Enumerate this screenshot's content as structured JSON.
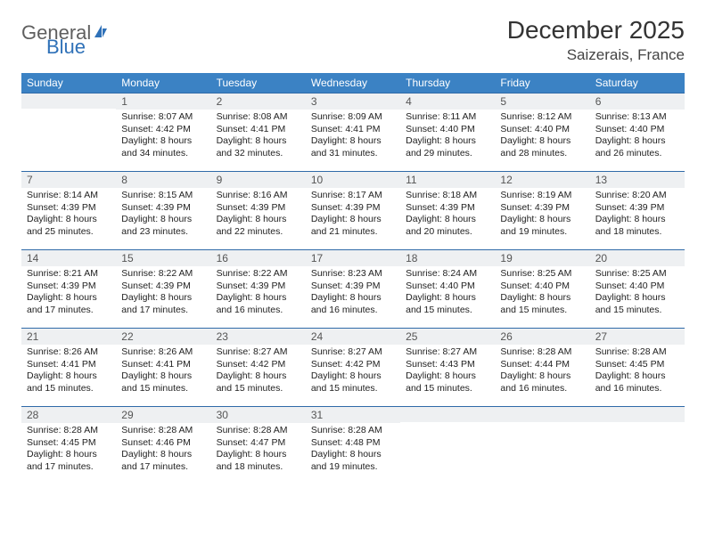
{
  "logo": {
    "part1": "General",
    "part2": "Blue"
  },
  "title": "December 2025",
  "location": "Saizerais, France",
  "colors": {
    "header_bg": "#3b82c4",
    "header_text": "#ffffff",
    "daynum_bg": "#eef0f2",
    "daynum_border": "#2f6aa8",
    "body_text": "#222222",
    "logo_gray": "#5f5f5f",
    "logo_blue": "#2f71b8"
  },
  "weekdays": [
    "Sunday",
    "Monday",
    "Tuesday",
    "Wednesday",
    "Thursday",
    "Friday",
    "Saturday"
  ],
  "weeks": [
    [
      null,
      {
        "n": "1",
        "sr": "Sunrise: 8:07 AM",
        "ss": "Sunset: 4:42 PM",
        "d1": "Daylight: 8 hours",
        "d2": "and 34 minutes."
      },
      {
        "n": "2",
        "sr": "Sunrise: 8:08 AM",
        "ss": "Sunset: 4:41 PM",
        "d1": "Daylight: 8 hours",
        "d2": "and 32 minutes."
      },
      {
        "n": "3",
        "sr": "Sunrise: 8:09 AM",
        "ss": "Sunset: 4:41 PM",
        "d1": "Daylight: 8 hours",
        "d2": "and 31 minutes."
      },
      {
        "n": "4",
        "sr": "Sunrise: 8:11 AM",
        "ss": "Sunset: 4:40 PM",
        "d1": "Daylight: 8 hours",
        "d2": "and 29 minutes."
      },
      {
        "n": "5",
        "sr": "Sunrise: 8:12 AM",
        "ss": "Sunset: 4:40 PM",
        "d1": "Daylight: 8 hours",
        "d2": "and 28 minutes."
      },
      {
        "n": "6",
        "sr": "Sunrise: 8:13 AM",
        "ss": "Sunset: 4:40 PM",
        "d1": "Daylight: 8 hours",
        "d2": "and 26 minutes."
      }
    ],
    [
      {
        "n": "7",
        "sr": "Sunrise: 8:14 AM",
        "ss": "Sunset: 4:39 PM",
        "d1": "Daylight: 8 hours",
        "d2": "and 25 minutes."
      },
      {
        "n": "8",
        "sr": "Sunrise: 8:15 AM",
        "ss": "Sunset: 4:39 PM",
        "d1": "Daylight: 8 hours",
        "d2": "and 23 minutes."
      },
      {
        "n": "9",
        "sr": "Sunrise: 8:16 AM",
        "ss": "Sunset: 4:39 PM",
        "d1": "Daylight: 8 hours",
        "d2": "and 22 minutes."
      },
      {
        "n": "10",
        "sr": "Sunrise: 8:17 AM",
        "ss": "Sunset: 4:39 PM",
        "d1": "Daylight: 8 hours",
        "d2": "and 21 minutes."
      },
      {
        "n": "11",
        "sr": "Sunrise: 8:18 AM",
        "ss": "Sunset: 4:39 PM",
        "d1": "Daylight: 8 hours",
        "d2": "and 20 minutes."
      },
      {
        "n": "12",
        "sr": "Sunrise: 8:19 AM",
        "ss": "Sunset: 4:39 PM",
        "d1": "Daylight: 8 hours",
        "d2": "and 19 minutes."
      },
      {
        "n": "13",
        "sr": "Sunrise: 8:20 AM",
        "ss": "Sunset: 4:39 PM",
        "d1": "Daylight: 8 hours",
        "d2": "and 18 minutes."
      }
    ],
    [
      {
        "n": "14",
        "sr": "Sunrise: 8:21 AM",
        "ss": "Sunset: 4:39 PM",
        "d1": "Daylight: 8 hours",
        "d2": "and 17 minutes."
      },
      {
        "n": "15",
        "sr": "Sunrise: 8:22 AM",
        "ss": "Sunset: 4:39 PM",
        "d1": "Daylight: 8 hours",
        "d2": "and 17 minutes."
      },
      {
        "n": "16",
        "sr": "Sunrise: 8:22 AM",
        "ss": "Sunset: 4:39 PM",
        "d1": "Daylight: 8 hours",
        "d2": "and 16 minutes."
      },
      {
        "n": "17",
        "sr": "Sunrise: 8:23 AM",
        "ss": "Sunset: 4:39 PM",
        "d1": "Daylight: 8 hours",
        "d2": "and 16 minutes."
      },
      {
        "n": "18",
        "sr": "Sunrise: 8:24 AM",
        "ss": "Sunset: 4:40 PM",
        "d1": "Daylight: 8 hours",
        "d2": "and 15 minutes."
      },
      {
        "n": "19",
        "sr": "Sunrise: 8:25 AM",
        "ss": "Sunset: 4:40 PM",
        "d1": "Daylight: 8 hours",
        "d2": "and 15 minutes."
      },
      {
        "n": "20",
        "sr": "Sunrise: 8:25 AM",
        "ss": "Sunset: 4:40 PM",
        "d1": "Daylight: 8 hours",
        "d2": "and 15 minutes."
      }
    ],
    [
      {
        "n": "21",
        "sr": "Sunrise: 8:26 AM",
        "ss": "Sunset: 4:41 PM",
        "d1": "Daylight: 8 hours",
        "d2": "and 15 minutes."
      },
      {
        "n": "22",
        "sr": "Sunrise: 8:26 AM",
        "ss": "Sunset: 4:41 PM",
        "d1": "Daylight: 8 hours",
        "d2": "and 15 minutes."
      },
      {
        "n": "23",
        "sr": "Sunrise: 8:27 AM",
        "ss": "Sunset: 4:42 PM",
        "d1": "Daylight: 8 hours",
        "d2": "and 15 minutes."
      },
      {
        "n": "24",
        "sr": "Sunrise: 8:27 AM",
        "ss": "Sunset: 4:42 PM",
        "d1": "Daylight: 8 hours",
        "d2": "and 15 minutes."
      },
      {
        "n": "25",
        "sr": "Sunrise: 8:27 AM",
        "ss": "Sunset: 4:43 PM",
        "d1": "Daylight: 8 hours",
        "d2": "and 15 minutes."
      },
      {
        "n": "26",
        "sr": "Sunrise: 8:28 AM",
        "ss": "Sunset: 4:44 PM",
        "d1": "Daylight: 8 hours",
        "d2": "and 16 minutes."
      },
      {
        "n": "27",
        "sr": "Sunrise: 8:28 AM",
        "ss": "Sunset: 4:45 PM",
        "d1": "Daylight: 8 hours",
        "d2": "and 16 minutes."
      }
    ],
    [
      {
        "n": "28",
        "sr": "Sunrise: 8:28 AM",
        "ss": "Sunset: 4:45 PM",
        "d1": "Daylight: 8 hours",
        "d2": "and 17 minutes."
      },
      {
        "n": "29",
        "sr": "Sunrise: 8:28 AM",
        "ss": "Sunset: 4:46 PM",
        "d1": "Daylight: 8 hours",
        "d2": "and 17 minutes."
      },
      {
        "n": "30",
        "sr": "Sunrise: 8:28 AM",
        "ss": "Sunset: 4:47 PM",
        "d1": "Daylight: 8 hours",
        "d2": "and 18 minutes."
      },
      {
        "n": "31",
        "sr": "Sunrise: 8:28 AM",
        "ss": "Sunset: 4:48 PM",
        "d1": "Daylight: 8 hours",
        "d2": "and 19 minutes."
      },
      null,
      null,
      null
    ]
  ]
}
